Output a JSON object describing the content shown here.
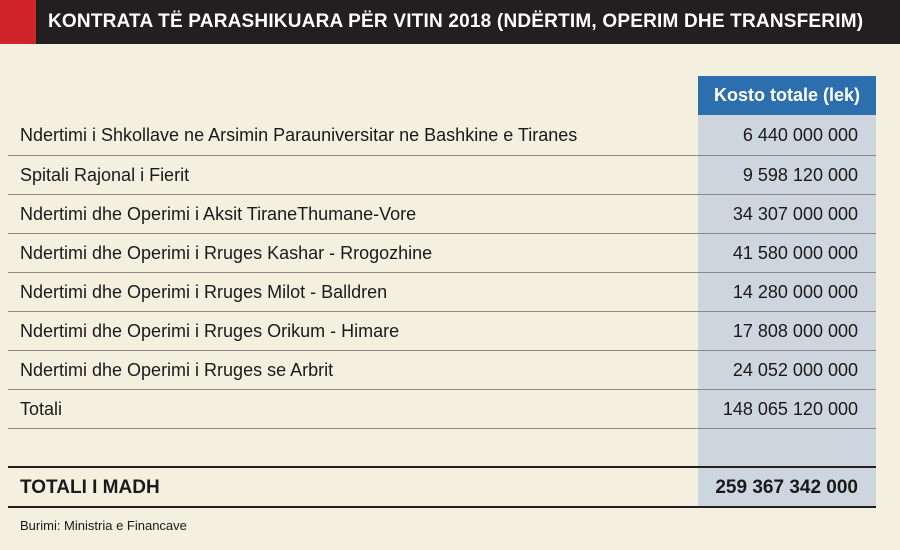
{
  "header": {
    "title": "KONTRATA TË PARASHIKUARA PËR VITIN 2018 (NDËRTIM, OPERIM DHE TRANSFERIM)"
  },
  "chart_data": {
    "type": "table",
    "columns": [
      "",
      "Kosto totale (lek)"
    ],
    "rows": [
      {
        "label": "Ndertimi i Shkollave ne Arsimin Parauniversitar ne Bashkine e Tiranes",
        "value": "6 440 000 000"
      },
      {
        "label": "Spitali Rajonal i Fierit",
        "value": "9 598 120 000"
      },
      {
        "label": "Ndertimi dhe Operimi i Aksit TiraneThumane-Vore",
        "value": "34 307 000 000"
      },
      {
        "label": "Ndertimi dhe Operimi i Rruges Kashar - Rrogozhine",
        "value": "41 580 000 000"
      },
      {
        "label": "Ndertimi dhe Operimi i Rruges Milot - Balldren",
        "value": "14 280 000 000"
      },
      {
        "label": "Ndertimi dhe Operimi i Rruges Orikum - Himare",
        "value": "17 808 000 000"
      },
      {
        "label": "Ndertimi dhe Operimi i Rruges se Arbrit",
        "value": "24 052 000 000"
      },
      {
        "label": "Totali",
        "value": "148 065 120 000"
      }
    ],
    "grand_total": {
      "label": "TOTALI I MADH",
      "value": "259 367 342 000"
    }
  },
  "source": "Burimi: Ministria e Financave",
  "colors": {
    "header_bg": "#231f20",
    "accent_red": "#d1232a",
    "column_header_bg": "#2d6fae",
    "value_column_bg": "#cdd6de",
    "page_bg": "#f3f0df"
  }
}
